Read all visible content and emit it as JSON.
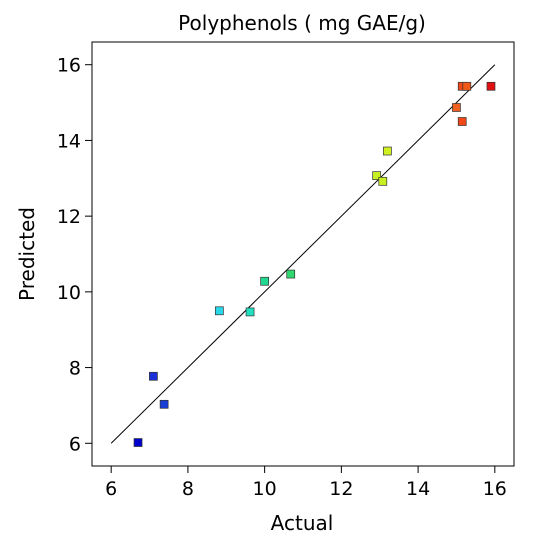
{
  "chart_data": {
    "type": "scatter",
    "title": "Polyphenols ( mg GAE/g)",
    "xlabel": "Actual",
    "ylabel": "Predicted",
    "xlim": [
      5.5,
      16.5
    ],
    "ylim": [
      5.4,
      16.6
    ],
    "xticks": [
      "6",
      "8",
      "10",
      "12",
      "14",
      "16"
    ],
    "yticks": [
      "6",
      "8",
      "10",
      "12",
      "14",
      "16"
    ],
    "grid": false,
    "reference_line": {
      "from": [
        6,
        6
      ],
      "to": [
        16,
        16
      ],
      "color": "#000000"
    },
    "points": [
      {
        "x": 6.7,
        "y": 6.02,
        "color": "#0000cc"
      },
      {
        "x": 7.1,
        "y": 7.77,
        "color": "#1a2fd6"
      },
      {
        "x": 7.38,
        "y": 7.03,
        "color": "#1a3fd6"
      },
      {
        "x": 8.82,
        "y": 9.5,
        "color": "#28d8e8"
      },
      {
        "x": 9.62,
        "y": 9.47,
        "color": "#20e0c0"
      },
      {
        "x": 10.0,
        "y": 10.28,
        "color": "#20d890"
      },
      {
        "x": 10.68,
        "y": 10.47,
        "color": "#30d870"
      },
      {
        "x": 12.92,
        "y": 13.07,
        "color": "#c8f020"
      },
      {
        "x": 13.08,
        "y": 12.92,
        "color": "#c8f020"
      },
      {
        "x": 13.2,
        "y": 13.72,
        "color": "#d0f020"
      },
      {
        "x": 15.0,
        "y": 14.87,
        "color": "#f06020"
      },
      {
        "x": 15.15,
        "y": 14.5,
        "color": "#f04818"
      },
      {
        "x": 15.15,
        "y": 15.43,
        "color": "#f04818"
      },
      {
        "x": 15.27,
        "y": 15.43,
        "color": "#f05818"
      },
      {
        "x": 15.9,
        "y": 15.43,
        "color": "#e01010"
      }
    ]
  }
}
